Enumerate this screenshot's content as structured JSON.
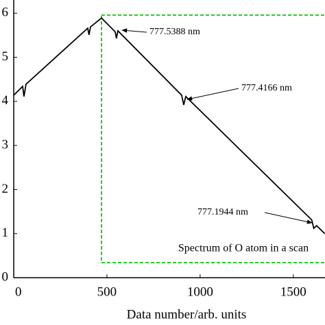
{
  "chart_data": {
    "type": "line",
    "x_label": "Data number/arb. units",
    "x": [
      0,
      48,
      55,
      66,
      397,
      404,
      412,
      471,
      544,
      551,
      559,
      901,
      912,
      923,
      1599,
      1610,
      1625,
      1669
    ],
    "series": [
      {
        "color": "#000000",
        "values": [
          4.14,
          4.34,
          4.11,
          4.39,
          5.66,
          5.51,
          5.69,
          5.89,
          5.58,
          5.43,
          5.6,
          4.14,
          3.92,
          4.11,
          1.31,
          1.12,
          1.18,
          1.0
        ]
      }
    ],
    "xlim": [
      0,
      1670
    ],
    "xticks": [
      0,
      500,
      1000,
      1500
    ],
    "ylim": [
      0,
      6.3
    ],
    "yticks": [
      0,
      1,
      2,
      3,
      4,
      5,
      6
    ],
    "annotations": [
      "777.5388 nm",
      "777.4166 nm",
      "777.1944 nm",
      "Spectrum of O atom in a scan"
    ]
  }
}
